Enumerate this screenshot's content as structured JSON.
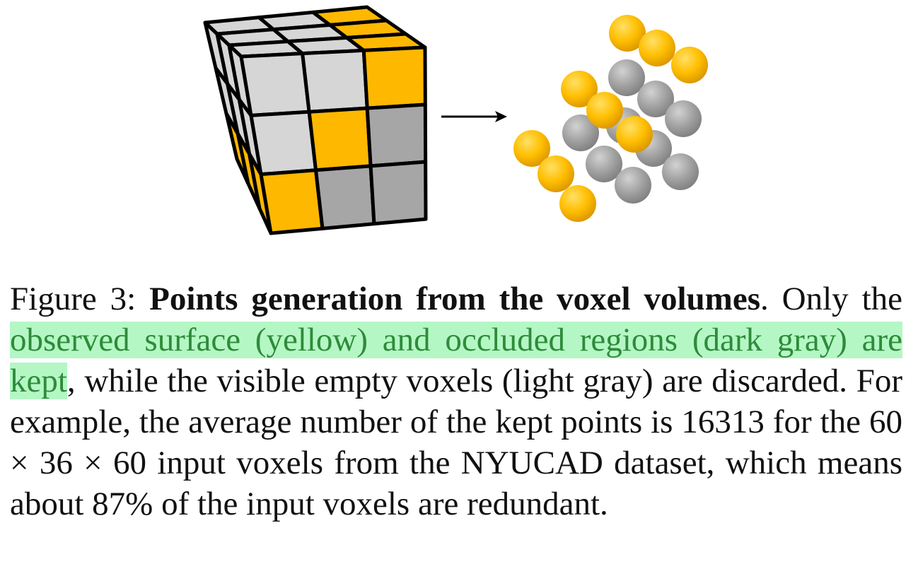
{
  "caption": {
    "label": "Figure 3:",
    "title": "Points generation from the voxel volumes",
    "after_title": ". Only the ",
    "highlighted": "observed surface (yellow) and occluded regions (dark gray) are kept",
    "rest": ", while the visible empty voxels (light gray) are discarded. For example, the average number of the kept points is 16313 for the 60 × 36 × 60 input voxels from the NYUCAD dataset, which means about 87% of the input voxels are redundant."
  },
  "colors": {
    "observed_surface": "#ffb800",
    "occluded": "#a6a6a6",
    "visible_empty": "#d6d6d6",
    "highlight_background": "#b4f7c4",
    "highlight_text": "#2e8b3a"
  },
  "figure": {
    "left_panel": "voxel-cube",
    "connector": "right-arrow-icon",
    "right_panel": "point-spheres"
  }
}
